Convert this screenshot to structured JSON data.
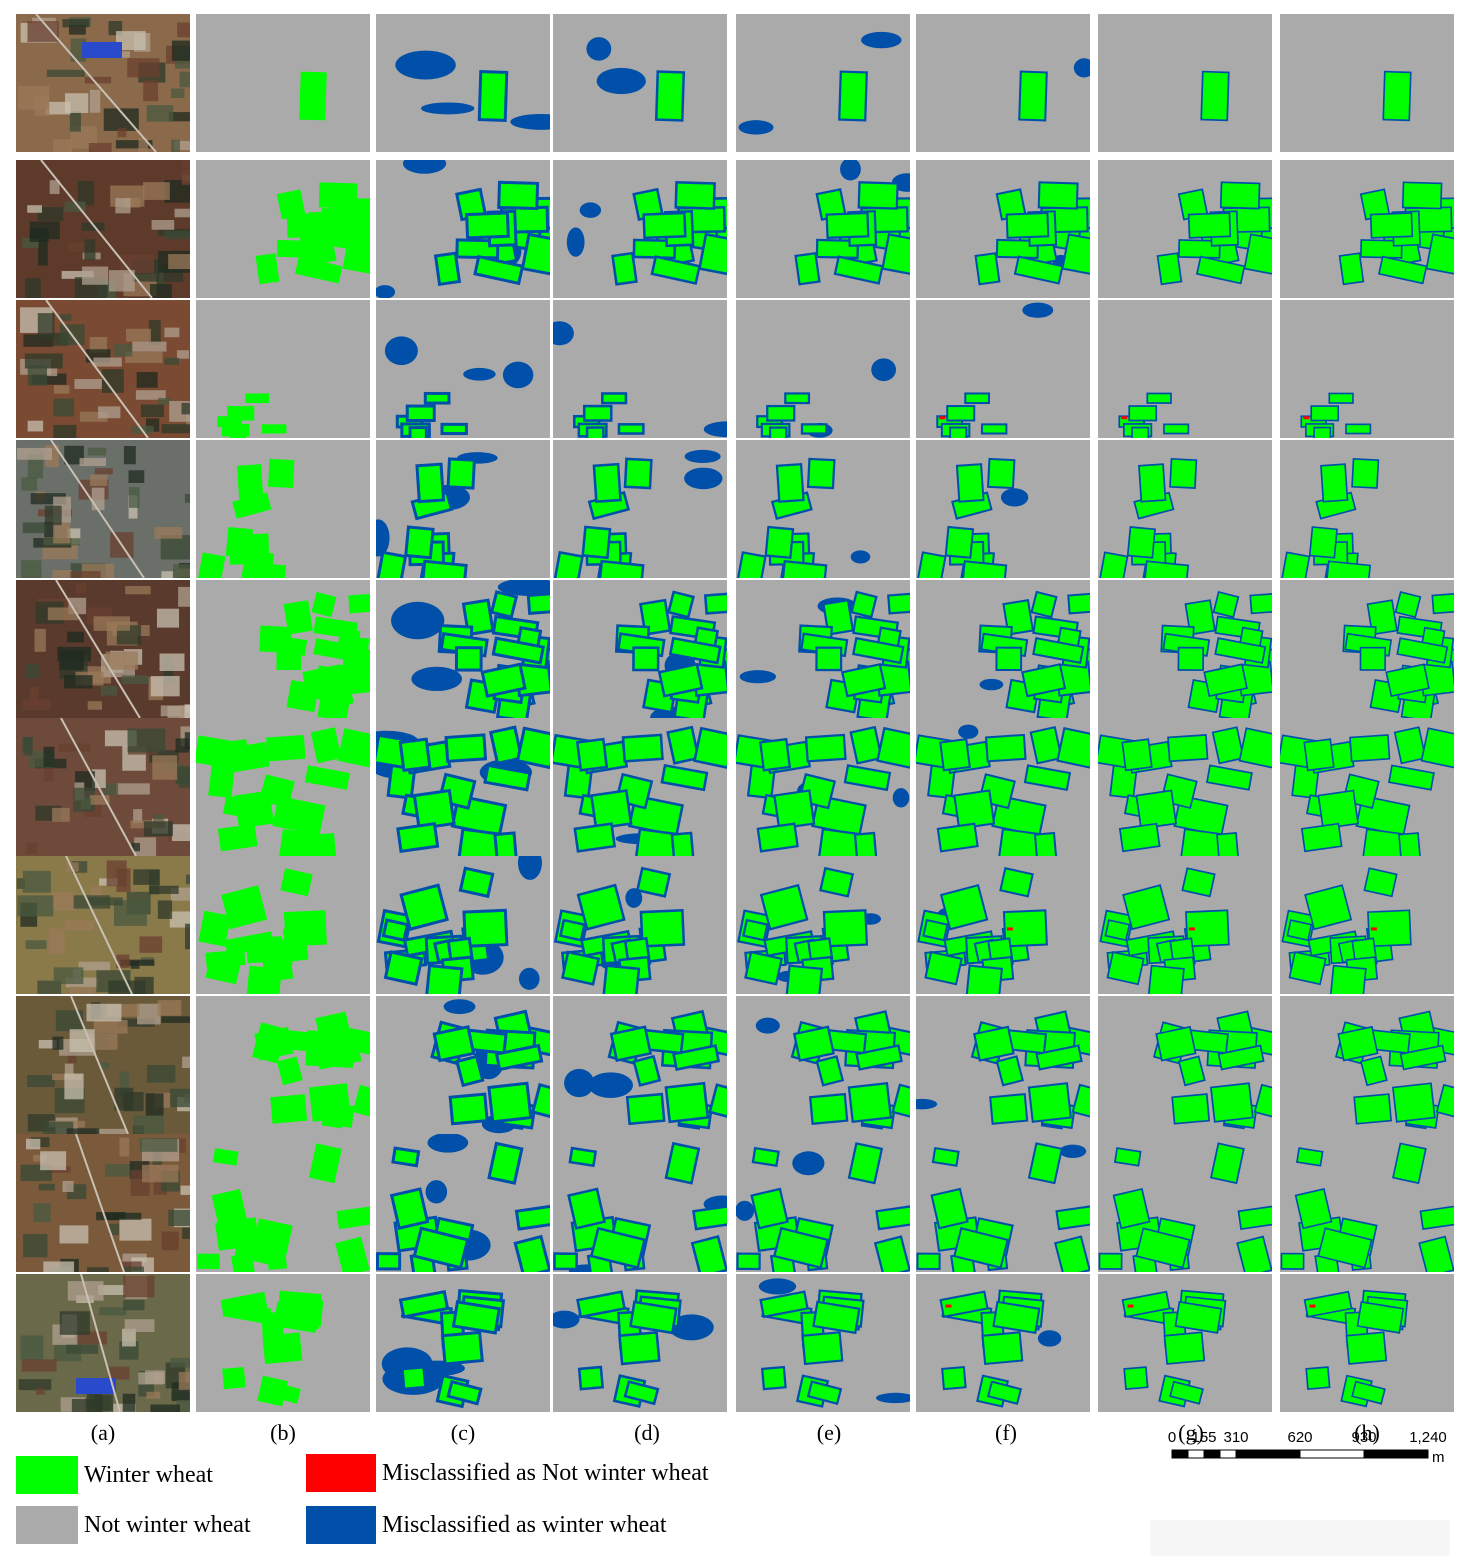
{
  "colors": {
    "winter_wheat": "#00ff00",
    "not_winter_wheat": "#aaaaaa",
    "misclassified_as_not_winter_wheat": "#ff0000",
    "misclassified_as_winter_wheat": "#0050aa"
  },
  "columns": [
    {
      "label": "(a)"
    },
    {
      "label": "(b)"
    },
    {
      "label": "(c)"
    },
    {
      "label": "(d)"
    },
    {
      "label": "(e)"
    },
    {
      "label": "(f)"
    },
    {
      "label": "(g)"
    },
    {
      "label": "(h)"
    }
  ],
  "legend": [
    {
      "label": "Winter wheat",
      "color": "#00ff00"
    },
    {
      "label": "Not winter wheat",
      "color": "#aaaaaa"
    },
    {
      "label": "Misclassified as Not winter wheat",
      "color": "#ff0000"
    },
    {
      "label": "Misclassified as winter wheat",
      "color": "#0050aa"
    }
  ],
  "scale_bar": {
    "tick_labels": [
      "0",
      "155",
      "310",
      "620",
      "930",
      "1,240"
    ],
    "tick_values": [
      0,
      155,
      310,
      620,
      930,
      1240
    ],
    "unit": "m"
  }
}
